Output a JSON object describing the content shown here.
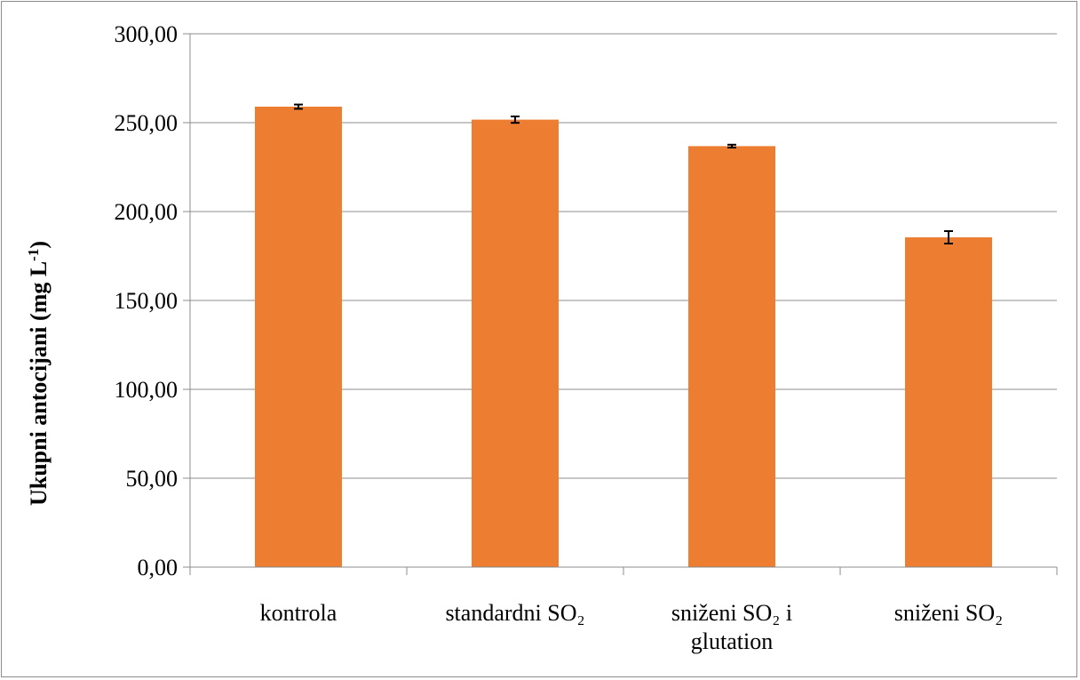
{
  "chart_data": {
    "type": "bar",
    "categories": [
      [
        "kontrola"
      ],
      [
        "standardni SO₂"
      ],
      [
        "sniženi SO₂ i",
        "glutation"
      ],
      [
        "sniženi SO₂"
      ]
    ],
    "values": [
      259.0,
      251.7,
      236.8,
      185.5
    ],
    "error": [
      1.2,
      1.8,
      0.8,
      3.5
    ],
    "ylabel": "Ukupni antocijani (mg L",
    "ylabel_sup": "-1",
    "ylabel_suffix": ")",
    "ylim": [
      0,
      300
    ],
    "yticks": [
      "0,00",
      "50,00",
      "100,00",
      "150,00",
      "200,00",
      "250,00",
      "300,00"
    ],
    "grid": true,
    "legend": "none",
    "colors": {
      "bar": "#ED7D31",
      "grid": "#8c8c8c",
      "errorbar": "#000000"
    }
  }
}
